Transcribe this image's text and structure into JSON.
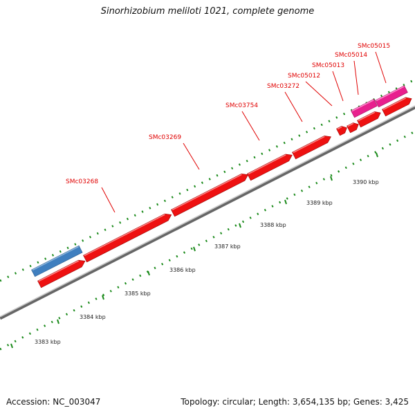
{
  "header": {
    "title": "Sinorhizobium meliloti 1021, complete genome"
  },
  "footer": {
    "accession": "Accession: NC_003047",
    "stats": "Topology: circular; Length: 3,654,135 bp; Genes: 3,425"
  },
  "scale": {
    "unit": "kbp",
    "labels": [
      "3383 kbp",
      "3384 kbp",
      "3385 kbp",
      "3386 kbp",
      "3387 kbp",
      "3388 kbp",
      "3389 kbp",
      "3390 kbp"
    ]
  },
  "genes": [
    {
      "label": "SMc03268",
      "color": "#ee1111"
    },
    {
      "label": "SMc03269",
      "color": "#ee1111"
    },
    {
      "label": "SMc03754",
      "color": "#ee1111"
    },
    {
      "label": "SMc03272",
      "color": "#ee1111"
    },
    {
      "label": "SMc05012",
      "color": "#ee1111"
    },
    {
      "label": "SMc05013",
      "color": "#ee1111"
    },
    {
      "label": "SMc05014",
      "color": "#e8208e"
    },
    {
      "label": "SMc05015",
      "color": "#e8208e"
    }
  ],
  "colors": {
    "cds": "#ee1111",
    "pseudo": "#e8208e",
    "other": "#3f7fbf",
    "ticks": "#1a8a1a",
    "backbone": "#888888"
  }
}
